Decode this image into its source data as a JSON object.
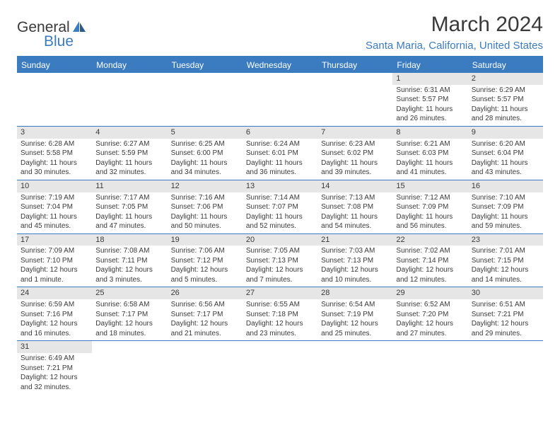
{
  "logo": {
    "text1": "General",
    "text2": "Blue"
  },
  "title": "March 2024",
  "location": "Santa Maria, California, United States",
  "colors": {
    "brand": "#3b7bbf",
    "text": "#3a3a3a",
    "bg": "#ffffff",
    "daynum_bg": "#e6e6e6"
  },
  "fonts": {
    "title_size": 30,
    "location_size": 15,
    "dayhead_size": 12,
    "cell_size": 10
  },
  "calendar": {
    "type": "table",
    "columns": [
      "Sunday",
      "Monday",
      "Tuesday",
      "Wednesday",
      "Thursday",
      "Friday",
      "Saturday"
    ],
    "weeks": [
      [
        null,
        null,
        null,
        null,
        null,
        {
          "n": "1",
          "sr": "Sunrise: 6:31 AM",
          "ss": "Sunset: 5:57 PM",
          "dl": "Daylight: 11 hours and 26 minutes."
        },
        {
          "n": "2",
          "sr": "Sunrise: 6:29 AM",
          "ss": "Sunset: 5:57 PM",
          "dl": "Daylight: 11 hours and 28 minutes."
        }
      ],
      [
        {
          "n": "3",
          "sr": "Sunrise: 6:28 AM",
          "ss": "Sunset: 5:58 PM",
          "dl": "Daylight: 11 hours and 30 minutes."
        },
        {
          "n": "4",
          "sr": "Sunrise: 6:27 AM",
          "ss": "Sunset: 5:59 PM",
          "dl": "Daylight: 11 hours and 32 minutes."
        },
        {
          "n": "5",
          "sr": "Sunrise: 6:25 AM",
          "ss": "Sunset: 6:00 PM",
          "dl": "Daylight: 11 hours and 34 minutes."
        },
        {
          "n": "6",
          "sr": "Sunrise: 6:24 AM",
          "ss": "Sunset: 6:01 PM",
          "dl": "Daylight: 11 hours and 36 minutes."
        },
        {
          "n": "7",
          "sr": "Sunrise: 6:23 AM",
          "ss": "Sunset: 6:02 PM",
          "dl": "Daylight: 11 hours and 39 minutes."
        },
        {
          "n": "8",
          "sr": "Sunrise: 6:21 AM",
          "ss": "Sunset: 6:03 PM",
          "dl": "Daylight: 11 hours and 41 minutes."
        },
        {
          "n": "9",
          "sr": "Sunrise: 6:20 AM",
          "ss": "Sunset: 6:04 PM",
          "dl": "Daylight: 11 hours and 43 minutes."
        }
      ],
      [
        {
          "n": "10",
          "sr": "Sunrise: 7:19 AM",
          "ss": "Sunset: 7:04 PM",
          "dl": "Daylight: 11 hours and 45 minutes."
        },
        {
          "n": "11",
          "sr": "Sunrise: 7:17 AM",
          "ss": "Sunset: 7:05 PM",
          "dl": "Daylight: 11 hours and 47 minutes."
        },
        {
          "n": "12",
          "sr": "Sunrise: 7:16 AM",
          "ss": "Sunset: 7:06 PM",
          "dl": "Daylight: 11 hours and 50 minutes."
        },
        {
          "n": "13",
          "sr": "Sunrise: 7:14 AM",
          "ss": "Sunset: 7:07 PM",
          "dl": "Daylight: 11 hours and 52 minutes."
        },
        {
          "n": "14",
          "sr": "Sunrise: 7:13 AM",
          "ss": "Sunset: 7:08 PM",
          "dl": "Daylight: 11 hours and 54 minutes."
        },
        {
          "n": "15",
          "sr": "Sunrise: 7:12 AM",
          "ss": "Sunset: 7:09 PM",
          "dl": "Daylight: 11 hours and 56 minutes."
        },
        {
          "n": "16",
          "sr": "Sunrise: 7:10 AM",
          "ss": "Sunset: 7:09 PM",
          "dl": "Daylight: 11 hours and 59 minutes."
        }
      ],
      [
        {
          "n": "17",
          "sr": "Sunrise: 7:09 AM",
          "ss": "Sunset: 7:10 PM",
          "dl": "Daylight: 12 hours and 1 minute."
        },
        {
          "n": "18",
          "sr": "Sunrise: 7:08 AM",
          "ss": "Sunset: 7:11 PM",
          "dl": "Daylight: 12 hours and 3 minutes."
        },
        {
          "n": "19",
          "sr": "Sunrise: 7:06 AM",
          "ss": "Sunset: 7:12 PM",
          "dl": "Daylight: 12 hours and 5 minutes."
        },
        {
          "n": "20",
          "sr": "Sunrise: 7:05 AM",
          "ss": "Sunset: 7:13 PM",
          "dl": "Daylight: 12 hours and 7 minutes."
        },
        {
          "n": "21",
          "sr": "Sunrise: 7:03 AM",
          "ss": "Sunset: 7:13 PM",
          "dl": "Daylight: 12 hours and 10 minutes."
        },
        {
          "n": "22",
          "sr": "Sunrise: 7:02 AM",
          "ss": "Sunset: 7:14 PM",
          "dl": "Daylight: 12 hours and 12 minutes."
        },
        {
          "n": "23",
          "sr": "Sunrise: 7:01 AM",
          "ss": "Sunset: 7:15 PM",
          "dl": "Daylight: 12 hours and 14 minutes."
        }
      ],
      [
        {
          "n": "24",
          "sr": "Sunrise: 6:59 AM",
          "ss": "Sunset: 7:16 PM",
          "dl": "Daylight: 12 hours and 16 minutes."
        },
        {
          "n": "25",
          "sr": "Sunrise: 6:58 AM",
          "ss": "Sunset: 7:17 PM",
          "dl": "Daylight: 12 hours and 18 minutes."
        },
        {
          "n": "26",
          "sr": "Sunrise: 6:56 AM",
          "ss": "Sunset: 7:17 PM",
          "dl": "Daylight: 12 hours and 21 minutes."
        },
        {
          "n": "27",
          "sr": "Sunrise: 6:55 AM",
          "ss": "Sunset: 7:18 PM",
          "dl": "Daylight: 12 hours and 23 minutes."
        },
        {
          "n": "28",
          "sr": "Sunrise: 6:54 AM",
          "ss": "Sunset: 7:19 PM",
          "dl": "Daylight: 12 hours and 25 minutes."
        },
        {
          "n": "29",
          "sr": "Sunrise: 6:52 AM",
          "ss": "Sunset: 7:20 PM",
          "dl": "Daylight: 12 hours and 27 minutes."
        },
        {
          "n": "30",
          "sr": "Sunrise: 6:51 AM",
          "ss": "Sunset: 7:21 PM",
          "dl": "Daylight: 12 hours and 29 minutes."
        }
      ],
      [
        {
          "n": "31",
          "sr": "Sunrise: 6:49 AM",
          "ss": "Sunset: 7:21 PM",
          "dl": "Daylight: 12 hours and 32 minutes."
        },
        null,
        null,
        null,
        null,
        null,
        null
      ]
    ]
  }
}
